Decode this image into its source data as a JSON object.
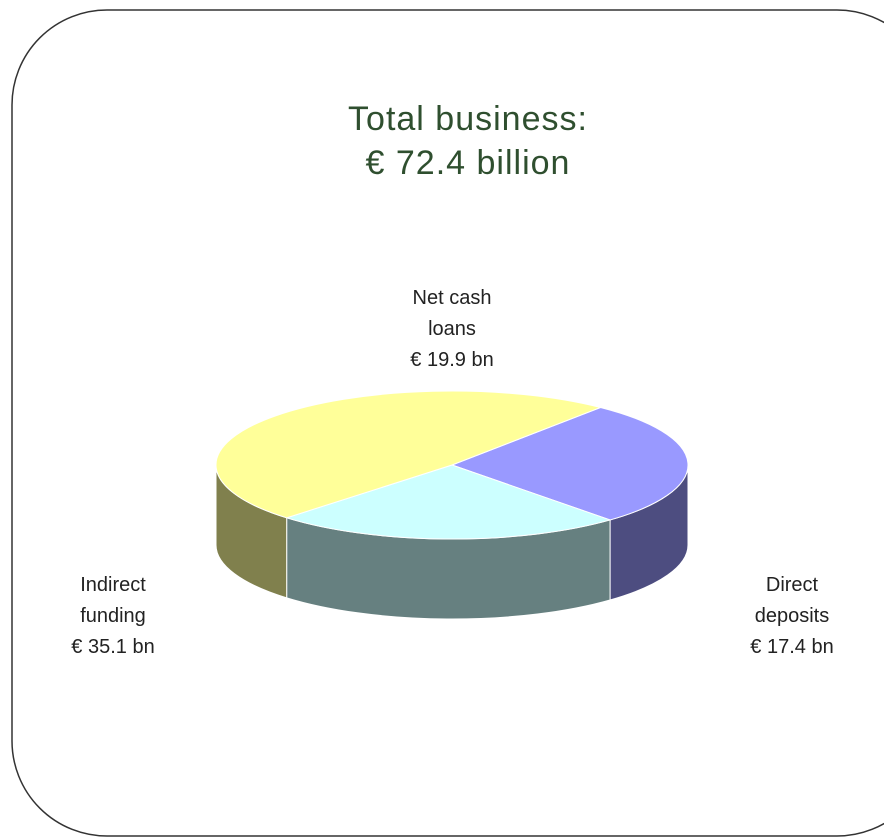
{
  "chart_data": {
    "type": "pie",
    "title": "Total business:",
    "subtitle": "€ 72.4 billion",
    "categories": [
      "Net cash loans",
      "Direct deposits",
      "Indirect funding"
    ],
    "values": [
      19.9,
      17.4,
      35.1
    ],
    "value_labels": [
      "€ 19.9 bn",
      "€ 17.4 bn",
      "€ 35.1 bn"
    ],
    "colors": [
      "#9999ff",
      "#ccffff",
      "#ffff99"
    ]
  }
}
